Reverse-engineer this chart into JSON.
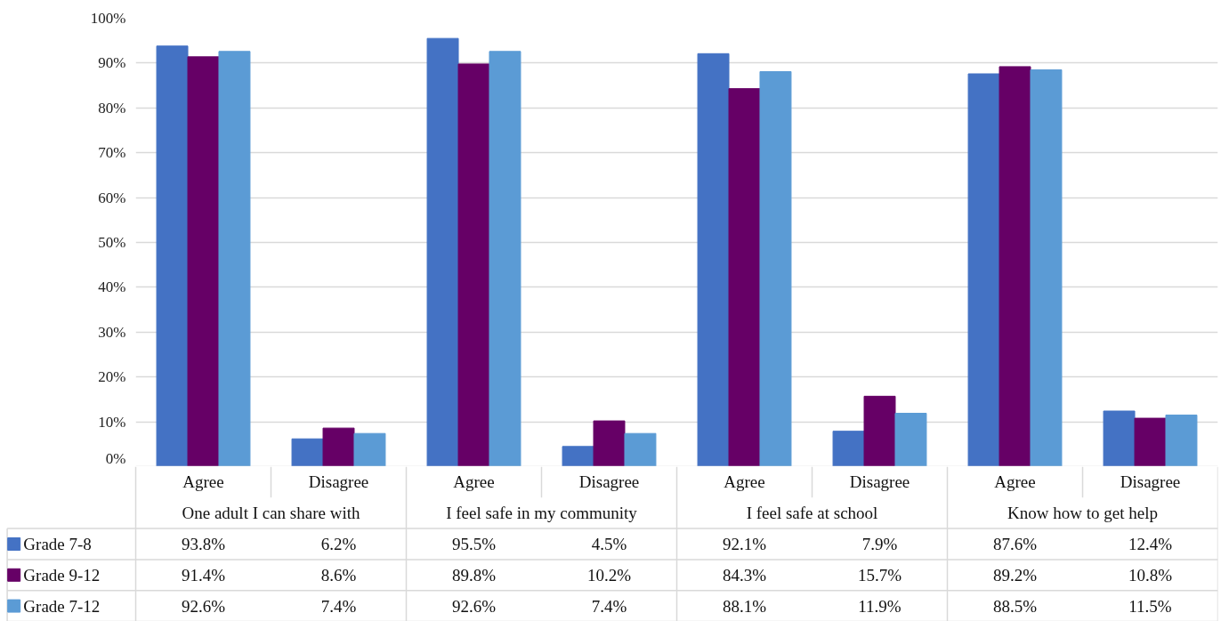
{
  "chart_data": {
    "type": "bar",
    "categories": [
      "Agree",
      "Disagree",
      "Agree",
      "Disagree",
      "Agree",
      "Disagree",
      "Agree",
      "Disagree"
    ],
    "annotations": [
      "One adult I can share with",
      "I feel safe in my community",
      "I feel safe at school",
      "Know how to get help"
    ],
    "series": [
      {
        "name": "Grade 7-8",
        "color": "#4472c4",
        "values": [
          93.8,
          6.2,
          95.5,
          4.5,
          92.1,
          7.9,
          87.6,
          12.4
        ],
        "value_labels": [
          "93.8%",
          "6.2%",
          "95.5%",
          "4.5%",
          "92.1%",
          "7.9%",
          "87.6%",
          "12.4%"
        ]
      },
      {
        "name": "Grade 9-12",
        "color": "#660066",
        "values": [
          91.4,
          8.6,
          89.8,
          10.2,
          84.3,
          15.7,
          89.2,
          10.8
        ],
        "value_labels": [
          "91.4%",
          "8.6%",
          "89.8%",
          "10.2%",
          "84.3%",
          "15.7%",
          "89.2%",
          "10.8%"
        ]
      },
      {
        "name": "Grade 7-12",
        "color": "#5b9bd5",
        "values": [
          92.6,
          7.4,
          92.6,
          7.4,
          88.1,
          11.9,
          88.5,
          11.5
        ],
        "value_labels": [
          "92.6%",
          "7.4%",
          "92.6%",
          "7.4%",
          "88.1%",
          "11.9%",
          "88.5%",
          "11.5%"
        ]
      }
    ],
    "ylim": [
      0,
      100
    ],
    "yticks": [
      {
        "value": 0,
        "label": "0%"
      },
      {
        "value": 10,
        "label": "10%"
      },
      {
        "value": 20,
        "label": "20%"
      },
      {
        "value": 30,
        "label": "30%"
      },
      {
        "value": 40,
        "label": "40%"
      },
      {
        "value": 50,
        "label": "50%"
      },
      {
        "value": 60,
        "label": "60%"
      },
      {
        "value": 70,
        "label": "70%"
      },
      {
        "value": 80,
        "label": "80%"
      },
      {
        "value": 90,
        "label": "90%"
      },
      {
        "value": 100,
        "label": "100%"
      }
    ],
    "grid": "y",
    "legend": "bottom"
  }
}
